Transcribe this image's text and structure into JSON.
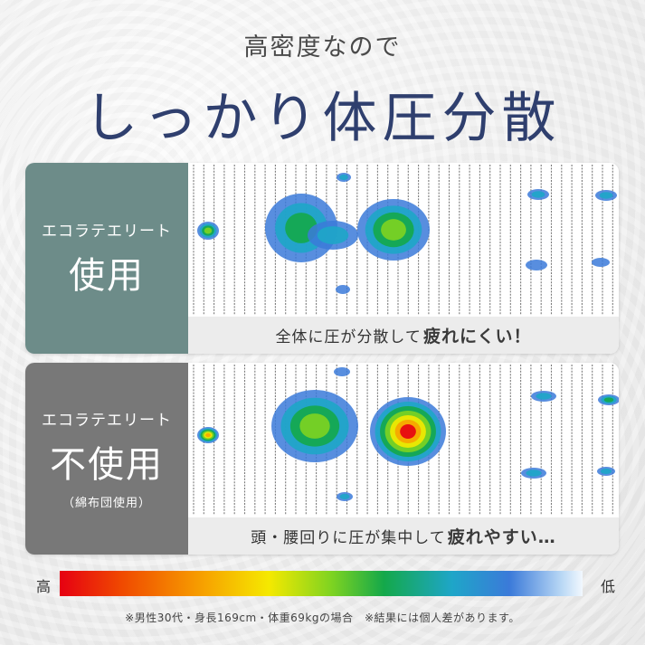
{
  "subtitle": "高密度なので",
  "title": "しっかり体圧分散",
  "panels": [
    {
      "label_top": "エコラテエリート",
      "label_main": "使用",
      "label_sub": "",
      "caption_text": "全体に圧が分散して",
      "caption_emphasis": "疲れにくい！",
      "label_color": "#6d8c89"
    },
    {
      "label_top": "エコラテエリート",
      "label_main": "不使用",
      "label_sub": "（綿布団使用）",
      "caption_text": "頭・腰回りに圧が集中して",
      "caption_emphasis": "疲れやすい…",
      "label_color": "#787878"
    }
  ],
  "scale": {
    "high_label": "高",
    "low_label": "低",
    "colors": [
      "#e60012",
      "#f7a400",
      "#f5e900",
      "#7ed321",
      "#14a84a",
      "#1ea6c8",
      "#3b7ad9",
      "#f2f8fe"
    ]
  },
  "note": "※男性30代・身長169cm・体重69kgの場合　※結果には個人差があります。"
}
